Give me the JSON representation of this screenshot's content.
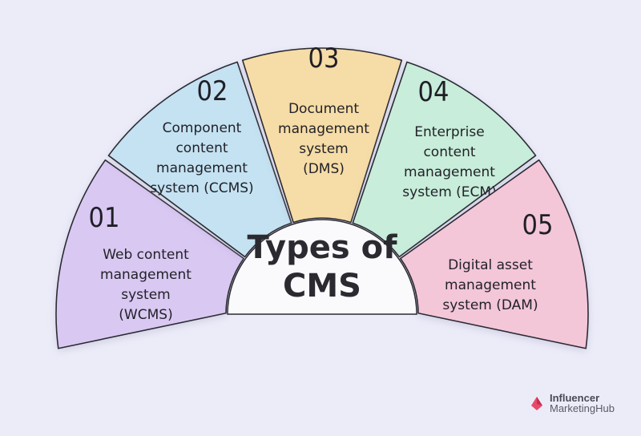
{
  "title_lines": [
    "Types of",
    "CMS"
  ],
  "segments": [
    {
      "num": "01",
      "lines": [
        "Web content",
        "management",
        "system",
        "(WCMS)"
      ],
      "color": "#D9C8F2"
    },
    {
      "num": "02",
      "lines": [
        "Component",
        "content",
        "management",
        "system (CCMS)"
      ],
      "color": "#C4E2F2"
    },
    {
      "num": "03",
      "lines": [
        "Document",
        "management",
        "system",
        "(DMS)"
      ],
      "color": "#F6DCA6"
    },
    {
      "num": "04",
      "lines": [
        "Enterprise",
        "content",
        "management",
        "system (ECM)"
      ],
      "color": "#C8EDDA"
    },
    {
      "num": "05",
      "lines": [
        "Digital asset",
        "management",
        "system (DAM)"
      ],
      "color": "#F3C6D8"
    }
  ],
  "brand": {
    "line1": "Influencer",
    "line2": "MarketingHub",
    "color": "#E8496A"
  }
}
